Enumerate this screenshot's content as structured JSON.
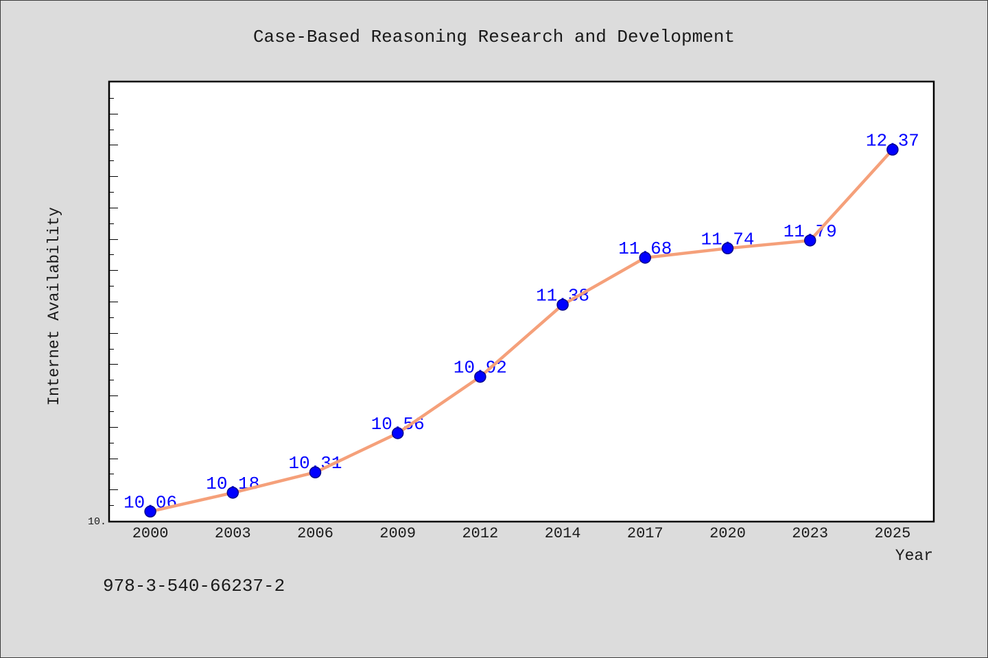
{
  "footer_text": "978-3-540-66237-2",
  "colors": {
    "background": "#dcdcdc",
    "plot_background": "#ffffff",
    "frame": "#000000",
    "line": "#f5a07a",
    "marker": "#0000ff",
    "marker_edge": "#00008b",
    "data_label": "#0000ff",
    "text": "#1a1a1a"
  },
  "chart_data": {
    "type": "line",
    "title": "Case-Based Reasoning Research and Development",
    "xlabel": "Year",
    "ylabel": "Internet Availability",
    "categories": [
      "2000",
      "2003",
      "2006",
      "2009",
      "2012",
      "2014",
      "2017",
      "2020",
      "2023",
      "2025"
    ],
    "series": [
      {
        "values": [
          10.06,
          10.18,
          10.31,
          10.56,
          10.92,
          11.38,
          11.68,
          11.74,
          11.79,
          12.37
        ],
        "show_data_labels": true
      }
    ],
    "ylim": [
      10,
      12.8
    ],
    "ytick_step": 0.1,
    "y_tick_labels": [
      {
        "value": 10,
        "label": "10."
      }
    ],
    "grid": false,
    "legend": false
  }
}
